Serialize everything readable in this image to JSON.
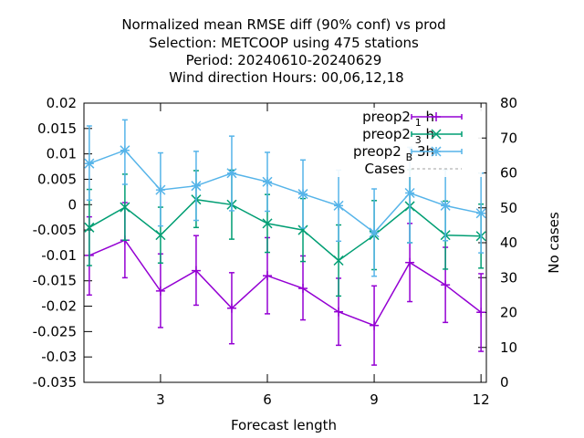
{
  "chart_data": {
    "type": "line",
    "title_lines": [
      "Normalized mean RMSE diff (90% conf) vs prod",
      "Selection: METCOOP using   475 stations",
      "Period: 20240610-20240629",
      "Wind direction   Hours:  00,06,12,18"
    ],
    "xlabel": "Forecast length",
    "ylabel_right": "No cases",
    "xlim": [
      0.85,
      12.15
    ],
    "ylim": [
      -0.035,
      0.02
    ],
    "y2lim": [
      0,
      80
    ],
    "x_ticks": [
      3,
      6,
      9,
      12
    ],
    "y_ticks": [
      0.02,
      0.015,
      0.01,
      0.005,
      0,
      -0.005,
      -0.01,
      -0.015,
      -0.02,
      -0.025,
      -0.03,
      -0.035
    ],
    "y_tick_labels": [
      "0.02",
      "0.015",
      "0.01",
      "0.005",
      "0",
      "-0.005",
      "-0.01",
      "-0.015",
      "-0.02",
      "-0.025",
      "-0.03",
      "-0.035"
    ],
    "y2_ticks": [
      80,
      70,
      60,
      50,
      40,
      30,
      20,
      10,
      0
    ],
    "y2_tick_labels": [
      "80",
      "70",
      "60",
      "50",
      "40",
      "30",
      "20",
      "10",
      "0"
    ],
    "grid": false,
    "legend_position": "top-right",
    "series": [
      {
        "name": "preop2_1h",
        "label_main": "preop2",
        "label_sub": "1",
        "label_tail": "h",
        "marker": "plus",
        "color": "#9400d3",
        "x": [
          1,
          2,
          3,
          4,
          5,
          6,
          7,
          8,
          9,
          10,
          11,
          12
        ],
        "y": [
          -0.01,
          -0.007,
          -0.017,
          -0.013,
          -0.0204,
          -0.014,
          -0.0165,
          -0.0211,
          -0.0238,
          -0.0114,
          -0.0158,
          -0.0212
        ],
        "err_low": [
          -0.0178,
          -0.0144,
          -0.0242,
          -0.0198,
          -0.0274,
          -0.0215,
          -0.0227,
          -0.0277,
          -0.0316,
          -0.0191,
          -0.0232,
          -0.0289
        ],
        "err_high": [
          -0.0024,
          0.0004,
          -0.0097,
          -0.0061,
          -0.0134,
          -0.0065,
          -0.0101,
          -0.0145,
          -0.016,
          -0.0037,
          -0.0084,
          -0.0136
        ]
      },
      {
        "name": "preop2_3h",
        "label_main": "preop2",
        "label_sub": "3",
        "label_tail": "h",
        "marker": "cross",
        "color": "#009e73",
        "x": [
          1,
          2,
          3,
          4,
          5,
          6,
          7,
          8,
          9,
          10,
          11,
          12
        ],
        "y": [
          -0.0045,
          -0.0005,
          -0.006,
          0.001,
          0.0,
          -0.0037,
          -0.005,
          -0.011,
          -0.006,
          -0.0003,
          -0.006,
          -0.0062
        ],
        "err_low": [
          -0.012,
          -0.007,
          -0.0115,
          -0.0045,
          -0.0068,
          -0.0094,
          -0.0112,
          -0.018,
          -0.0128,
          -0.0075,
          -0.0127,
          -0.0125
        ],
        "err_high": [
          0.003,
          0.006,
          -0.0005,
          0.0067,
          0.0068,
          0.002,
          0.0012,
          -0.004,
          0.0008,
          0.0069,
          0.0007,
          0.0001
        ]
      },
      {
        "name": "preop2_B_3h",
        "label_main": "preop2",
        "label_sub": "B",
        "label_tail": "3h",
        "marker": "star",
        "color": "#56b4e9",
        "x": [
          1,
          2,
          3,
          4,
          5,
          6,
          7,
          8,
          9,
          10,
          11,
          12
        ],
        "y": [
          0.0081,
          0.0107,
          0.0029,
          0.0037,
          0.0062,
          0.0045,
          0.0021,
          -0.0002,
          -0.0055,
          0.0023,
          -0.0002,
          -0.0017
        ],
        "err_low": [
          0.0009,
          0.004,
          -0.0042,
          -0.0031,
          -0.0012,
          -0.0013,
          -0.0046,
          -0.0072,
          -0.0141,
          -0.0075,
          -0.0071,
          -0.0095
        ],
        "err_high": [
          0.0155,
          0.0167,
          0.0102,
          0.0105,
          0.0135,
          0.0103,
          0.0088,
          0.0068,
          0.0031,
          0.0113,
          0.0069,
          0.0062
        ]
      }
    ],
    "cases_series": {
      "name": "Cases",
      "color": "#a0a0a0",
      "x": [],
      "y": []
    }
  }
}
